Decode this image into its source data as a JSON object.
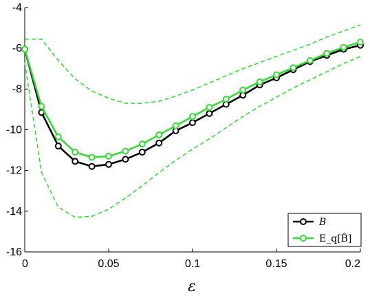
{
  "chart_data": {
    "type": "line",
    "xlabel": "ε",
    "ylabel": "",
    "xlim": [
      0,
      0.2
    ],
    "ylim": [
      -16,
      -4
    ],
    "xticks": [
      0,
      0.05,
      0.1,
      0.15,
      0.2
    ],
    "xtick_labels": [
      "0",
      "0.05",
      "0.1",
      "0.15",
      "0.2"
    ],
    "yticks": [
      -16,
      -14,
      -12,
      -10,
      -8,
      -6,
      -4
    ],
    "ytick_labels": [
      "-16",
      "-14",
      "-12",
      "-10",
      "-8",
      "-6",
      "-4"
    ],
    "grid": false,
    "legend_position": "bottom-right",
    "x": [
      0,
      0.01,
      0.02,
      0.03,
      0.04,
      0.05,
      0.06,
      0.07,
      0.08,
      0.09,
      0.1,
      0.11,
      0.12,
      0.13,
      0.14,
      0.15,
      0.16,
      0.17,
      0.18,
      0.19,
      0.2
    ],
    "series": [
      {
        "name": "B",
        "color": "#000000",
        "style": "solid-circle-markers",
        "values": [
          -6.05,
          -9.15,
          -10.8,
          -11.55,
          -11.8,
          -11.7,
          -11.45,
          -11.1,
          -10.65,
          -10.05,
          -9.65,
          -9.2,
          -8.75,
          -8.3,
          -7.8,
          -7.45,
          -7.05,
          -6.65,
          -6.35,
          -6.05,
          -5.85
        ]
      },
      {
        "name": "E_q[B̂]",
        "color": "#33dd33",
        "style": "solid-circle-markers",
        "values": [
          -6.05,
          -8.85,
          -10.35,
          -11.1,
          -11.35,
          -11.3,
          -11.05,
          -10.7,
          -10.25,
          -9.8,
          -9.35,
          -8.9,
          -8.5,
          -8.05,
          -7.65,
          -7.3,
          -6.95,
          -6.6,
          -6.25,
          -5.95,
          -5.7
        ]
      },
      {
        "name": "",
        "color": "#33dd33",
        "style": "dashed",
        "values": [
          -5.55,
          -5.55,
          -6.6,
          -7.5,
          -8.1,
          -8.45,
          -8.7,
          -8.7,
          -8.6,
          -8.35,
          -8.05,
          -7.7,
          -7.35,
          -7.0,
          -6.7,
          -6.4,
          -6.1,
          -5.8,
          -5.45,
          -5.15,
          -4.85
        ]
      },
      {
        "name": "",
        "color": "#33dd33",
        "style": "dashed",
        "values": [
          -6.7,
          -12.1,
          -13.8,
          -14.3,
          -14.25,
          -13.9,
          -13.35,
          -12.75,
          -12.1,
          -11.5,
          -10.95,
          -10.45,
          -9.9,
          -9.35,
          -8.85,
          -8.4,
          -7.95,
          -7.55,
          -7.15,
          -6.75,
          -6.4
        ]
      }
    ]
  }
}
